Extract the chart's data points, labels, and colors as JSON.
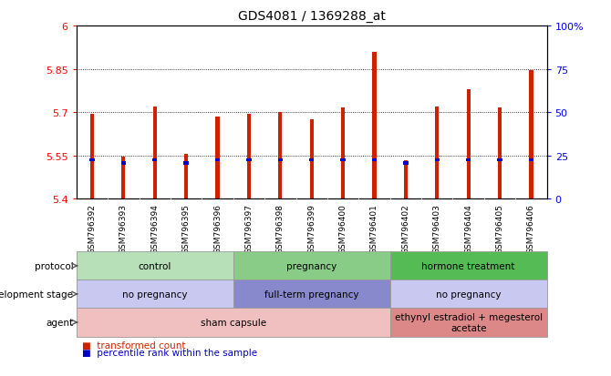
{
  "title": "GDS4081 / 1369288_at",
  "samples": [
    "GSM796392",
    "GSM796393",
    "GSM796394",
    "GSM796395",
    "GSM796396",
    "GSM796397",
    "GSM796398",
    "GSM796399",
    "GSM796400",
    "GSM796401",
    "GSM796402",
    "GSM796403",
    "GSM796404",
    "GSM796405",
    "GSM796406"
  ],
  "red_values": [
    5.695,
    5.545,
    5.72,
    5.555,
    5.685,
    5.695,
    5.7,
    5.675,
    5.715,
    5.91,
    5.535,
    5.72,
    5.78,
    5.715,
    5.845
  ],
  "blue_values": [
    5.535,
    5.525,
    5.535,
    5.525,
    5.535,
    5.535,
    5.535,
    5.535,
    5.535,
    5.535,
    5.525,
    5.535,
    5.535,
    5.535,
    5.535
  ],
  "y_min": 5.4,
  "y_max": 6.0,
  "y_ticks": [
    5.4,
    5.55,
    5.7,
    5.85,
    6.0
  ],
  "y_tick_labels": [
    "5.4",
    "5.55",
    "5.7",
    "5.85",
    "6"
  ],
  "right_y_ticks": [
    0,
    25,
    50,
    75,
    100
  ],
  "right_y_tick_labels": [
    "0",
    "25",
    "50",
    "75",
    "100%"
  ],
  "protocol_groups": [
    {
      "label": "control",
      "start": 0,
      "end": 4,
      "color": "#b8e0b8"
    },
    {
      "label": "pregnancy",
      "start": 5,
      "end": 9,
      "color": "#88cc88"
    },
    {
      "label": "hormone treatment",
      "start": 10,
      "end": 14,
      "color": "#55bb55"
    }
  ],
  "dev_stage_groups": [
    {
      "label": "no pregnancy",
      "start": 0,
      "end": 4,
      "color": "#c8c8f0"
    },
    {
      "label": "full-term pregnancy",
      "start": 5,
      "end": 9,
      "color": "#8888cc"
    },
    {
      "label": "no pregnancy",
      "start": 10,
      "end": 14,
      "color": "#c8c8f0"
    }
  ],
  "agent_groups": [
    {
      "label": "sham capsule",
      "start": 0,
      "end": 9,
      "color": "#f0c0c0"
    },
    {
      "label": "ethynyl estradiol + megesterol\nacetate",
      "start": 10,
      "end": 14,
      "color": "#dd8888"
    }
  ],
  "row_labels": [
    "protocol",
    "development stage",
    "agent"
  ],
  "bar_color": "#cc2200",
  "blue_color": "#0000cc",
  "bar_width": 0.12
}
